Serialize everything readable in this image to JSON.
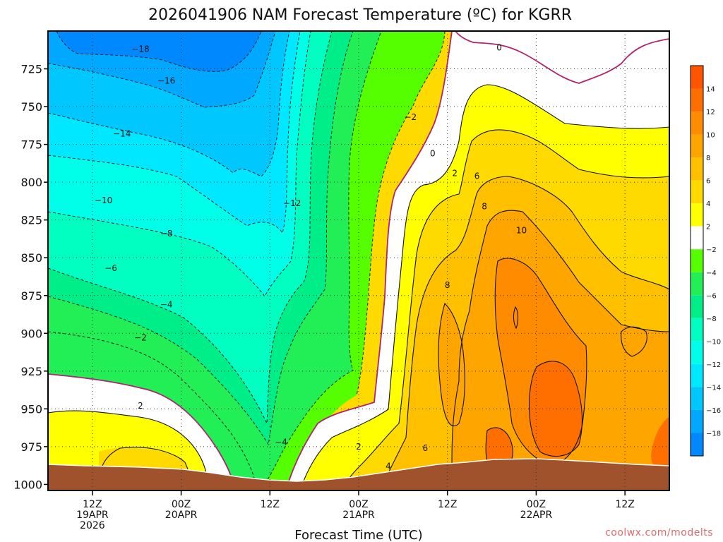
{
  "chart_data": {
    "type": "contour",
    "title": "2026041906 NAM Forecast Temperature (ºC) for KGRR",
    "xlabel": "Forecast Time (UTC)",
    "ylabel": "",
    "x_ticks": [
      {
        "hour": 6,
        "lines": [
          "12Z",
          "19APR",
          "2026"
        ]
      },
      {
        "hour": 18,
        "lines": [
          "00Z",
          "20APR"
        ]
      },
      {
        "hour": 30,
        "lines": [
          "12Z"
        ]
      },
      {
        "hour": 42,
        "lines": [
          "00Z",
          "21APR"
        ]
      },
      {
        "hour": 54,
        "lines": [
          "12Z"
        ]
      },
      {
        "hour": 66,
        "lines": [
          "00Z",
          "22APR"
        ]
      },
      {
        "hour": 78,
        "lines": [
          "12Z"
        ]
      }
    ],
    "xlim": [
      0,
      84
    ],
    "y_ticks": [
      725,
      750,
      775,
      800,
      825,
      850,
      875,
      900,
      925,
      950,
      975,
      1000
    ],
    "ylim": [
      700,
      1004
    ],
    "y_inverted": true,
    "grid": true,
    "colorbar": {
      "placement": "right",
      "labels": [
        14,
        12,
        10,
        8,
        6,
        4,
        2,
        -2,
        -4,
        -6,
        -8,
        -10,
        -12,
        -14,
        -16,
        -18
      ],
      "bins": [
        {
          "range": [
            14,
            16
          ],
          "color": "#ff5500"
        },
        {
          "range": [
            12,
            14
          ],
          "color": "#ff6f00"
        },
        {
          "range": [
            10,
            12
          ],
          "color": "#ff8c00"
        },
        {
          "range": [
            8,
            10
          ],
          "color": "#ffa500"
        },
        {
          "range": [
            6,
            8
          ],
          "color": "#ffc000"
        },
        {
          "range": [
            4,
            6
          ],
          "color": "#ffda00"
        },
        {
          "range": [
            2,
            4
          ],
          "color": "#ffff00"
        },
        {
          "range": [
            -2,
            2
          ],
          "color": "#ffffff"
        },
        {
          "range": [
            -4,
            -2
          ],
          "color": "#55ff00"
        },
        {
          "range": [
            -6,
            -4
          ],
          "color": "#22ee55"
        },
        {
          "range": [
            -8,
            -6
          ],
          "color": "#00ee88"
        },
        {
          "range": [
            -10,
            -8
          ],
          "color": "#00ffc0"
        },
        {
          "range": [
            -12,
            -10
          ],
          "color": "#00ffe8"
        },
        {
          "range": [
            -14,
            -12
          ],
          "color": "#00e8ff"
        },
        {
          "range": [
            -16,
            -14
          ],
          "color": "#00c8ff"
        },
        {
          "range": [
            -18,
            -16
          ],
          "color": "#00a8ff"
        },
        {
          "range": [
            -20,
            -18
          ],
          "color": "#0088ff"
        }
      ]
    },
    "contour_labels": [
      {
        "value": "-18",
        "hour": 12.5,
        "p": 712
      },
      {
        "value": "-16",
        "hour": 16,
        "p": 733
      },
      {
        "value": "-14",
        "hour": 10,
        "p": 768
      },
      {
        "value": "-12",
        "hour": 33,
        "p": 814
      },
      {
        "value": "-10",
        "hour": 7.5,
        "p": 812
      },
      {
        "value": "-8",
        "hour": 16,
        "p": 834
      },
      {
        "value": "-6",
        "hour": 8.5,
        "p": 857
      },
      {
        "value": "-4",
        "hour": 16,
        "p": 881
      },
      {
        "value": "-2",
        "hour": 12.5,
        "p": 903
      },
      {
        "value": "-2",
        "hour": 49,
        "p": 757
      },
      {
        "value": "-4",
        "hour": 31.5,
        "p": 972
      },
      {
        "value": "0",
        "hour": 61,
        "p": 711
      },
      {
        "value": "0",
        "hour": 52,
        "p": 781
      },
      {
        "value": "2",
        "hour": 12.5,
        "p": 948
      },
      {
        "value": "2",
        "hour": 42,
        "p": 975
      },
      {
        "value": "2",
        "hour": 55,
        "p": 794
      },
      {
        "value": "4",
        "hour": 46,
        "p": 988
      },
      {
        "value": "6",
        "hour": 51,
        "p": 976
      },
      {
        "value": "6",
        "hour": 58,
        "p": 796
      },
      {
        "value": "8",
        "hour": 59,
        "p": 816
      },
      {
        "value": "8",
        "hour": 54,
        "p": 868
      },
      {
        "value": "10",
        "hour": 64,
        "p": 832
      }
    ],
    "credit": "coolwx.com/modelts"
  }
}
